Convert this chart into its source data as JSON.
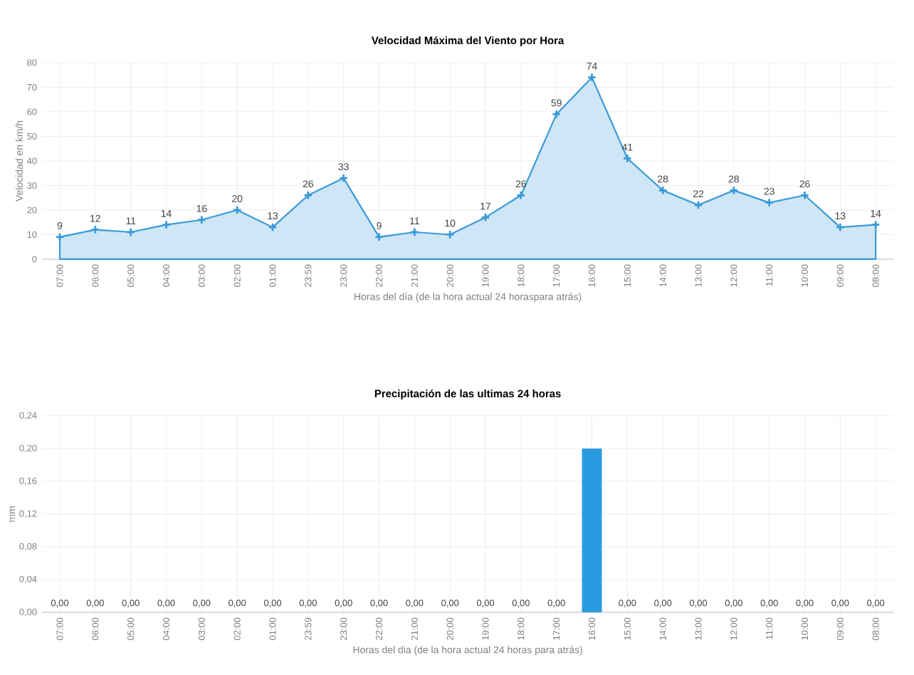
{
  "chart_data": [
    {
      "type": "area",
      "title": "Velocidad Máxima del Viento por Hora",
      "xlabel": "Horas del día (de la hora actual 24 horaspara atrás)",
      "ylabel": "Velocidad en km/h",
      "categories": [
        "07:00",
        "06:00",
        "05:00",
        "04:00",
        "03:00",
        "02:00",
        "01:00",
        "23:59",
        "23:00",
        "22:00",
        "21:00",
        "20:00",
        "19:00",
        "18:00",
        "17:00",
        "16:00",
        "15:00",
        "14:00",
        "13:00",
        "12:00",
        "11:00",
        "10:00",
        "09:00",
        "08:00"
      ],
      "values": [
        9,
        12,
        11,
        14,
        16,
        20,
        13,
        26,
        33,
        9,
        11,
        10,
        17,
        26,
        59,
        74,
        41,
        28,
        22,
        28,
        23,
        26,
        13,
        14
      ],
      "color": "#3a9ad9",
      "ylim": [
        0,
        80
      ],
      "yticks": [
        0,
        10,
        20,
        30,
        40,
        50,
        60,
        70,
        80
      ],
      "grid": true,
      "marker": "cross",
      "data_labels": true
    },
    {
      "type": "bar",
      "title": "Precipitación de las ultimas 24 horas",
      "xlabel": "Horas del dia (de la hora actual 24 horas para atrás)",
      "ylabel": "mm",
      "categories": [
        "07:00",
        "06:00",
        "05:00",
        "04:00",
        "03:00",
        "02:00",
        "01:00",
        "23:59",
        "23:00",
        "22:00",
        "21:00",
        "20:00",
        "19:00",
        "18:00",
        "17:00",
        "16:00",
        "15:00",
        "14:00",
        "13:00",
        "12:00",
        "11:00",
        "10:00",
        "09:00",
        "08:00"
      ],
      "values": [
        0,
        0,
        0,
        0,
        0,
        0,
        0,
        0,
        0,
        0,
        0,
        0,
        0,
        0,
        0,
        0.2,
        0,
        0,
        0,
        0,
        0,
        0,
        0,
        0
      ],
      "value_labels": [
        "0,00",
        "0,00",
        "0,00",
        "0,00",
        "0,00",
        "0,00",
        "0,00",
        "0,00",
        "0,00",
        "0,00",
        "0,00",
        "0,00",
        "0,00",
        "0,00",
        "0,00",
        null,
        "0,00",
        "0,00",
        "0,00",
        "0,00",
        "0,00",
        "0,00",
        "0,00",
        "0,00"
      ],
      "color": "#2a9be0",
      "ylim": [
        0,
        0.24
      ],
      "yticks": [
        {
          "value": 0,
          "label": "0,00"
        },
        {
          "value": 0.04,
          "label": "0,04"
        },
        {
          "value": 0.08,
          "label": "0,08"
        },
        {
          "value": 0.12,
          "label": "0,12"
        },
        {
          "value": 0.16,
          "label": "0,16"
        },
        {
          "value": 0.2,
          "label": "0,20"
        },
        {
          "value": 0.24,
          "label": "0,24"
        }
      ],
      "grid": true
    }
  ]
}
